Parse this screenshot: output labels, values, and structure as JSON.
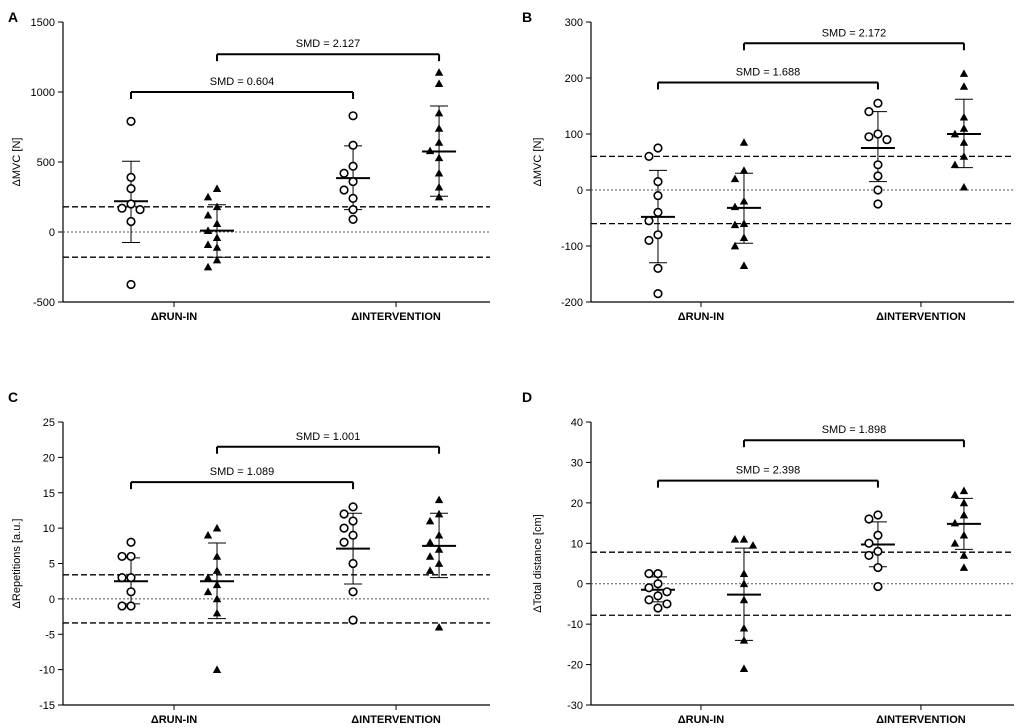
{
  "chart_data": [
    {
      "type": "scatter",
      "panel": "A",
      "ylabel": "ΔMVC [N]",
      "ylim": [
        -500,
        1500
      ],
      "yticks": [
        -500,
        0,
        500,
        1000,
        1500
      ],
      "ytick_labels": [
        "-500",
        "0",
        "500",
        "1000",
        "1500"
      ],
      "categories": [
        "ΔRUN-IN",
        "ΔINTERVENTION"
      ],
      "mdc_line": 180,
      "comparisons": [
        {
          "label": "SMD = 0.604",
          "level": 1000,
          "from": "ΔRUN-IN circle",
          "to": "ΔINTERVENTION circle"
        },
        {
          "label": "SMD = 2.127",
          "level": 1270,
          "from": "ΔRUN-IN triangle",
          "to": "ΔINTERVENTION triangle"
        }
      ],
      "series": [
        {
          "name": "ΔRUN-IN circle",
          "category": "ΔRUN-IN",
          "marker": "circle",
          "mean": 220,
          "sd_low": -75,
          "sd_high": 505,
          "values": [
            790,
            390,
            310,
            200,
            170,
            160,
            75,
            -375
          ]
        },
        {
          "name": "ΔRUN-IN triangle",
          "category": "ΔRUN-IN",
          "marker": "triangle",
          "mean": 10,
          "sd_low": -180,
          "sd_high": 195,
          "values": [
            310,
            250,
            180,
            120,
            60,
            10,
            -40,
            -90,
            -110,
            -200,
            -250
          ]
        },
        {
          "name": "ΔINTERVENTION circle",
          "category": "ΔINTERVENTION",
          "marker": "circle",
          "mean": 385,
          "sd_low": 160,
          "sd_high": 615,
          "values": [
            830,
            620,
            470,
            420,
            360,
            300,
            240,
            160,
            90
          ]
        },
        {
          "name": "ΔINTERVENTION triangle",
          "category": "ΔINTERVENTION",
          "marker": "triangle",
          "mean": 575,
          "sd_low": 255,
          "sd_high": 900,
          "values": [
            1140,
            1060,
            850,
            740,
            640,
            580,
            530,
            420,
            320,
            250
          ]
        }
      ]
    },
    {
      "type": "scatter",
      "panel": "B",
      "ylabel": "ΔMVC [N]",
      "ylim": [
        -200,
        300
      ],
      "yticks": [
        -200,
        -100,
        0,
        100,
        200,
        300
      ],
      "ytick_labels": [
        "-200",
        "-100",
        "0",
        "100",
        "200",
        "300"
      ],
      "categories": [
        "ΔRUN-IN",
        "ΔINTERVENTION"
      ],
      "mdc_line": 60,
      "comparisons": [
        {
          "label": "SMD = 1.688",
          "level": 192,
          "from": "ΔRUN-IN circle",
          "to": "ΔINTERVENTION circle"
        },
        {
          "label": "SMD = 2.172",
          "level": 262,
          "from": "ΔRUN-IN triangle",
          "to": "ΔINTERVENTION triangle"
        }
      ],
      "series": [
        {
          "name": "ΔRUN-IN circle",
          "category": "ΔRUN-IN",
          "marker": "circle",
          "mean": -48,
          "sd_low": -130,
          "sd_high": 35,
          "values": [
            75,
            60,
            15,
            -10,
            -40,
            -55,
            -80,
            -90,
            -140,
            -185
          ]
        },
        {
          "name": "ΔRUN-IN triangle",
          "category": "ΔRUN-IN",
          "marker": "triangle",
          "mean": -32,
          "sd_low": -95,
          "sd_high": 30,
          "values": [
            85,
            35,
            20,
            -20,
            -30,
            -60,
            -62,
            -85,
            -100,
            -135
          ]
        },
        {
          "name": "ΔINTERVENTION circle",
          "category": "ΔINTERVENTION",
          "marker": "circle",
          "mean": 75,
          "sd_low": 15,
          "sd_high": 140,
          "values": [
            155,
            140,
            100,
            95,
            90,
            45,
            25,
            0,
            -25
          ]
        },
        {
          "name": "ΔINTERVENTION triangle",
          "category": "ΔINTERVENTION",
          "marker": "triangle",
          "mean": 100,
          "sd_low": 40,
          "sd_high": 162,
          "values": [
            208,
            185,
            130,
            110,
            100,
            85,
            60,
            45,
            5
          ]
        }
      ]
    },
    {
      "type": "scatter",
      "panel": "C",
      "ylabel": "ΔRepetitions [a.u.]",
      "ylim": [
        -15,
        25
      ],
      "yticks": [
        -15,
        -10,
        -5,
        0,
        5,
        10,
        15,
        20,
        25
      ],
      "ytick_labels": [
        "-15",
        "-10",
        "-5",
        "0",
        "5",
        "10",
        "15",
        "20",
        "25"
      ],
      "categories": [
        "ΔRUN-IN",
        "ΔINTERVENTION"
      ],
      "mdc_line": 3.4,
      "comparisons": [
        {
          "label": "SMD = 1.089",
          "level": 16.5,
          "from": "ΔRUN-IN circle",
          "to": "ΔINTERVENTION circle"
        },
        {
          "label": "SMD = 1.001",
          "level": 21.5,
          "from": "ΔRUN-IN triangle",
          "to": "ΔINTERVENTION triangle"
        }
      ],
      "series": [
        {
          "name": "ΔRUN-IN circle",
          "category": "ΔRUN-IN",
          "marker": "circle",
          "mean": 2.5,
          "sd_low": -0.7,
          "sd_high": 5.8,
          "values": [
            8,
            6,
            6,
            3,
            3,
            1,
            -1,
            -1
          ]
        },
        {
          "name": "ΔRUN-IN triangle",
          "category": "ΔRUN-IN",
          "marker": "triangle",
          "mean": 2.5,
          "sd_low": -2.8,
          "sd_high": 7.9,
          "values": [
            10,
            9,
            6,
            4,
            3,
            2,
            1,
            0,
            -2,
            -10
          ]
        },
        {
          "name": "ΔINTERVENTION circle",
          "category": "ΔINTERVENTION",
          "marker": "circle",
          "mean": 7.1,
          "sd_low": 2.1,
          "sd_high": 12.1,
          "values": [
            13,
            12,
            11,
            10,
            9,
            8,
            5,
            1,
            -3
          ]
        },
        {
          "name": "ΔINTERVENTION triangle",
          "category": "ΔINTERVENTION",
          "marker": "triangle",
          "mean": 7.5,
          "sd_low": 3.0,
          "sd_high": 12.1,
          "values": [
            14,
            12,
            11,
            9,
            8,
            7,
            6,
            5,
            4,
            -4
          ]
        }
      ]
    },
    {
      "type": "scatter",
      "panel": "D",
      "ylabel": "ΔTotal distance [cm]",
      "ylim": [
        -30,
        40
      ],
      "yticks": [
        -30,
        -20,
        -10,
        0,
        10,
        20,
        30,
        40
      ],
      "ytick_labels": [
        "-30",
        "-20",
        "-10",
        "0",
        "10",
        "20",
        "30",
        "40"
      ],
      "categories": [
        "ΔRUN-IN",
        "ΔINTERVENTION"
      ],
      "mdc_line": 7.8,
      "comparisons": [
        {
          "label": "SMD = 2.398",
          "level": 25.5,
          "from": "ΔRUN-IN circle",
          "to": "ΔINTERVENTION circle"
        },
        {
          "label": "SMD = 1.898",
          "level": 35.5,
          "from": "ΔRUN-IN triangle",
          "to": "ΔINTERVENTION triangle"
        }
      ],
      "series": [
        {
          "name": "ΔRUN-IN circle",
          "category": "ΔRUN-IN",
          "marker": "circle",
          "mean": -1.5,
          "sd_low": -4.5,
          "sd_high": 1.7,
          "values": [
            2.5,
            2.5,
            0,
            -1,
            -2,
            -3,
            -4,
            -5,
            -6
          ]
        },
        {
          "name": "ΔRUN-IN triangle",
          "category": "ΔRUN-IN",
          "marker": "triangle",
          "mean": -2.7,
          "sd_low": -14,
          "sd_high": 8.8,
          "values": [
            11,
            11,
            9.5,
            2.5,
            0,
            -4,
            -11,
            -14,
            -21
          ]
        },
        {
          "name": "ΔINTERVENTION circle",
          "category": "ΔINTERVENTION",
          "marker": "circle",
          "mean": 9.7,
          "sd_low": 4.2,
          "sd_high": 15.3,
          "values": [
            17,
            16,
            12,
            10,
            8,
            7,
            4,
            -0.7
          ]
        },
        {
          "name": "ΔINTERVENTION triangle",
          "category": "ΔINTERVENTION",
          "marker": "triangle",
          "mean": 14.8,
          "sd_low": 8.5,
          "sd_high": 21.1,
          "values": [
            23,
            22,
            20,
            17,
            15,
            12,
            10,
            7,
            4
          ]
        }
      ]
    }
  ]
}
